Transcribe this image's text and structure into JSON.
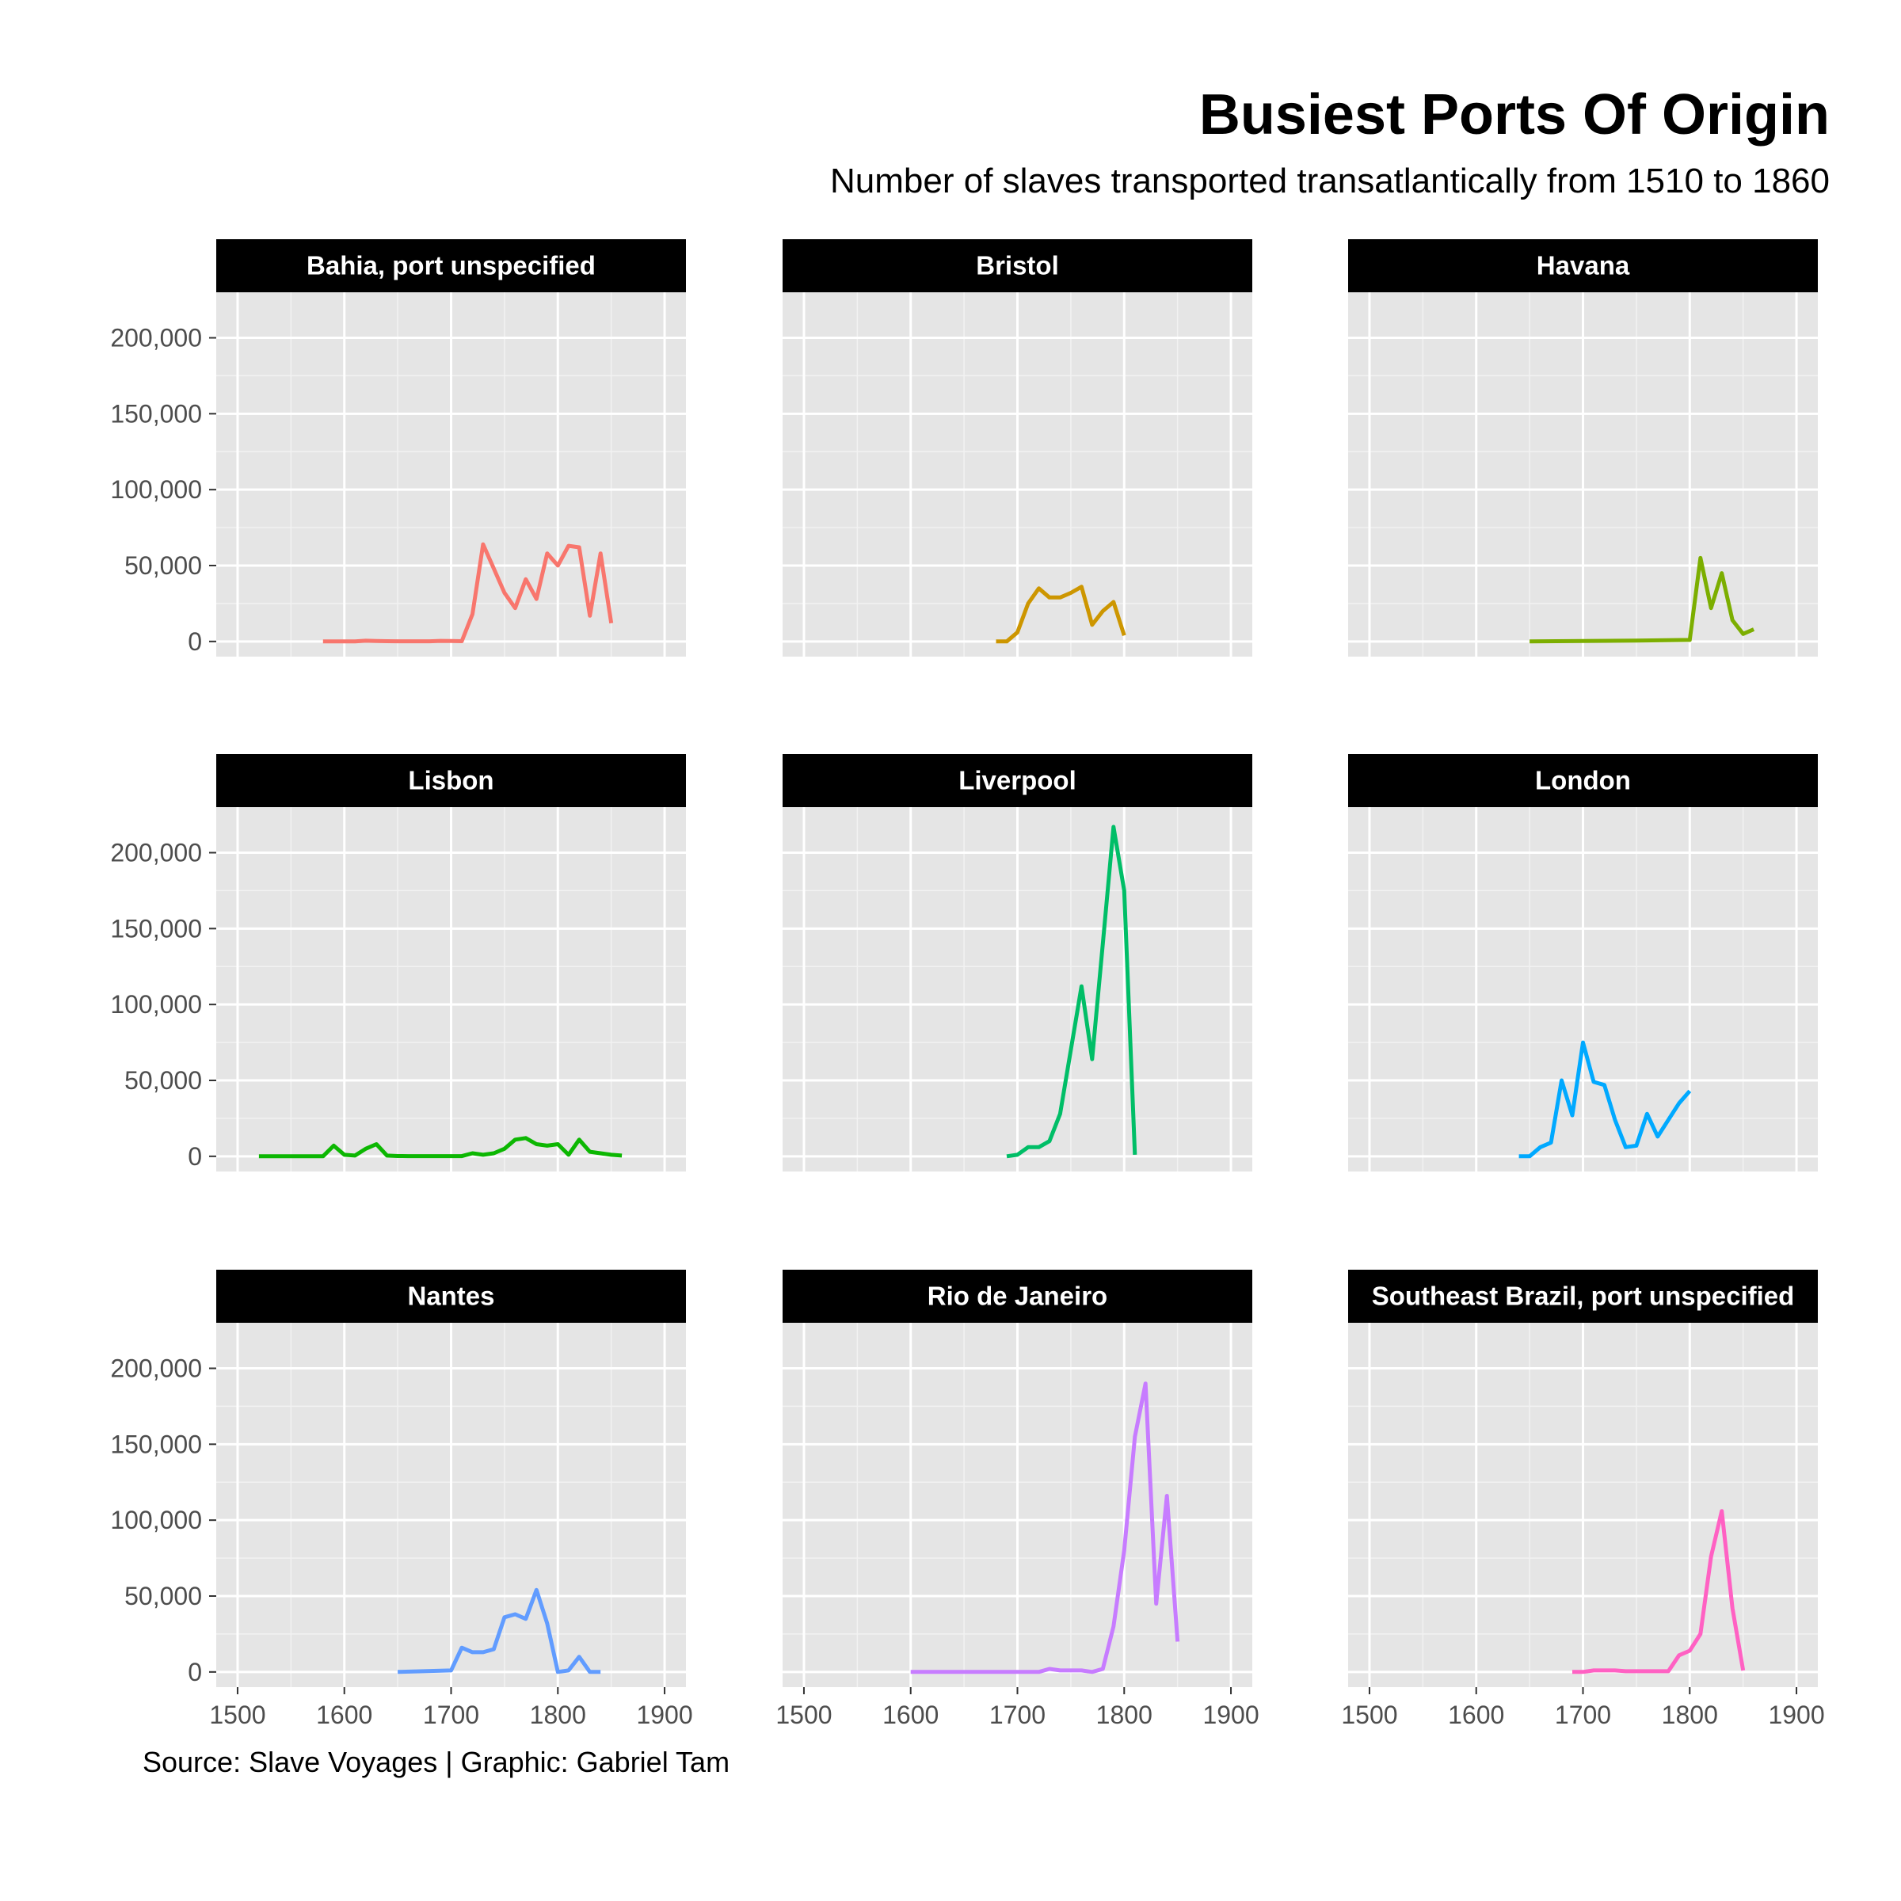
{
  "chart_data": {
    "type": "line",
    "title": "Busiest Ports Of Origin",
    "subtitle": "Number of slaves transported transatlantically from 1510 to 1860",
    "caption": "Source: Slave Voyages | Graphic: Gabriel Tam",
    "xlim": [
      1480,
      1920
    ],
    "ylim": [
      -10000,
      230000
    ],
    "x_ticks": [
      1500,
      1600,
      1700,
      1800,
      1900
    ],
    "y_ticks": [
      0,
      50000,
      100000,
      150000,
      200000
    ],
    "x_tick_labels": [
      "1500",
      "1600",
      "1700",
      "1800",
      "1900"
    ],
    "y_tick_labels": [
      "0",
      "50,000",
      "100,000",
      "150,000",
      "200,000"
    ],
    "facets": [
      {
        "name": "Bahia, port unspecified",
        "color": "#F8766D",
        "x": [
          1580,
          1590,
          1600,
          1610,
          1620,
          1630,
          1640,
          1650,
          1660,
          1670,
          1680,
          1690,
          1700,
          1710,
          1720,
          1730,
          1740,
          1750,
          1760,
          1770,
          1780,
          1790,
          1800,
          1810,
          1820,
          1830,
          1840,
          1850
        ],
        "y": [
          0,
          0,
          0,
          0,
          500,
          300,
          200,
          100,
          100,
          100,
          100,
          400,
          300,
          200,
          18000,
          64000,
          48000,
          32000,
          22000,
          41000,
          28000,
          58000,
          50000,
          63000,
          62000,
          17000,
          58000,
          12000
        ]
      },
      {
        "name": "Bristol",
        "color": "#CD9600",
        "x": [
          1680,
          1690,
          1700,
          1710,
          1720,
          1730,
          1740,
          1750,
          1760,
          1770,
          1780,
          1790,
          1800
        ],
        "y": [
          0,
          0,
          6000,
          25000,
          35000,
          29000,
          29000,
          32000,
          36000,
          11000,
          20000,
          26000,
          4000
        ]
      },
      {
        "name": "Havana",
        "color": "#7CAE00",
        "x": [
          1650,
          1700,
          1750,
          1800,
          1810,
          1820,
          1830,
          1840,
          1850,
          1860
        ],
        "y": [
          0,
          300,
          600,
          1000,
          55000,
          22000,
          45000,
          14000,
          5000,
          8000
        ]
      },
      {
        "name": "Lisbon",
        "color": "#0CB702",
        "x": [
          1520,
          1530,
          1540,
          1550,
          1560,
          1570,
          1580,
          1590,
          1600,
          1610,
          1620,
          1630,
          1640,
          1650,
          1660,
          1670,
          1680,
          1690,
          1700,
          1710,
          1720,
          1730,
          1740,
          1750,
          1760,
          1770,
          1780,
          1790,
          1800,
          1810,
          1820,
          1830,
          1840,
          1850,
          1860
        ],
        "y": [
          0,
          0,
          0,
          0,
          0,
          0,
          0,
          7000,
          1000,
          500,
          5000,
          8000,
          500,
          200,
          100,
          100,
          100,
          100,
          100,
          100,
          2000,
          1000,
          2000,
          5000,
          11000,
          12000,
          8000,
          7000,
          8000,
          1000,
          11000,
          3000,
          2000,
          1000,
          500
        ]
      },
      {
        "name": "Liverpool",
        "color": "#00BE67",
        "x": [
          1690,
          1700,
          1710,
          1720,
          1730,
          1740,
          1750,
          1760,
          1770,
          1780,
          1790,
          1800,
          1810
        ],
        "y": [
          0,
          1000,
          6000,
          6000,
          10000,
          28000,
          70000,
          112000,
          64000,
          140000,
          217000,
          175000,
          1000
        ]
      },
      {
        "name": "London",
        "color": "#00A9FF",
        "x": [
          1640,
          1650,
          1660,
          1670,
          1680,
          1690,
          1700,
          1710,
          1720,
          1730,
          1740,
          1750,
          1760,
          1770,
          1780,
          1790,
          1800
        ],
        "y": [
          0,
          0,
          6000,
          9000,
          50000,
          27000,
          75000,
          49000,
          47000,
          24000,
          6000,
          7000,
          28000,
          13000,
          24000,
          35000,
          43000
        ]
      },
      {
        "name": "Nantes",
        "color": "#619CFF",
        "x": [
          1650,
          1700,
          1710,
          1720,
          1730,
          1740,
          1750,
          1760,
          1770,
          1780,
          1790,
          1800,
          1810,
          1820,
          1830,
          1840
        ],
        "y": [
          0,
          1000,
          16000,
          13000,
          13000,
          15000,
          36000,
          38000,
          35000,
          54000,
          32000,
          0,
          1000,
          10000,
          0,
          0
        ]
      },
      {
        "name": "Rio de Janeiro",
        "color": "#C77CFF",
        "x": [
          1600,
          1650,
          1700,
          1720,
          1730,
          1740,
          1750,
          1760,
          1770,
          1780,
          1790,
          1800,
          1810,
          1820,
          1830,
          1840,
          1850
        ],
        "y": [
          0,
          0,
          0,
          0,
          2000,
          1000,
          1000,
          1000,
          0,
          2000,
          30000,
          80000,
          155000,
          190000,
          45000,
          116000,
          20000
        ]
      },
      {
        "name": "Southeast Brazil, port unspecified",
        "color": "#FF61C3",
        "x": [
          1690,
          1700,
          1710,
          1720,
          1730,
          1740,
          1750,
          1760,
          1770,
          1780,
          1790,
          1800,
          1810,
          1820,
          1830,
          1840,
          1850
        ],
        "y": [
          0,
          0,
          1000,
          1000,
          1000,
          500,
          500,
          500,
          500,
          500,
          11000,
          14000,
          25000,
          76000,
          106000,
          42000,
          1000
        ]
      }
    ]
  }
}
